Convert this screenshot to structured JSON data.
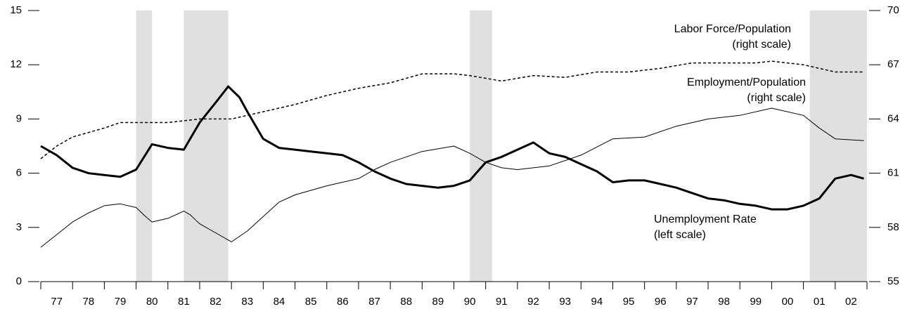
{
  "chart_data": {
    "type": "line",
    "xlim": [
      1977,
      2003
    ],
    "xticks": [
      {
        "value": 1977.5,
        "label": "77"
      },
      {
        "value": 1978.5,
        "label": "78"
      },
      {
        "value": 1979.5,
        "label": "79"
      },
      {
        "value": 1980.5,
        "label": "80"
      },
      {
        "value": 1981.5,
        "label": "81"
      },
      {
        "value": 1982.5,
        "label": "82"
      },
      {
        "value": 1983.5,
        "label": "83"
      },
      {
        "value": 1984.5,
        "label": "84"
      },
      {
        "value": 1985.5,
        "label": "85"
      },
      {
        "value": 1986.5,
        "label": "86"
      },
      {
        "value": 1987.5,
        "label": "87"
      },
      {
        "value": 1988.5,
        "label": "88"
      },
      {
        "value": 1989.5,
        "label": "89"
      },
      {
        "value": 1990.5,
        "label": "90"
      },
      {
        "value": 1991.5,
        "label": "91"
      },
      {
        "value": 1992.5,
        "label": "92"
      },
      {
        "value": 1993.5,
        "label": "93"
      },
      {
        "value": 1994.5,
        "label": "94"
      },
      {
        "value": 1995.5,
        "label": "95"
      },
      {
        "value": 1996.5,
        "label": "96"
      },
      {
        "value": 1997.5,
        "label": "97"
      },
      {
        "value": 1998.5,
        "label": "98"
      },
      {
        "value": 1999.5,
        "label": "99"
      },
      {
        "value": 2000.5,
        "label": "00"
      },
      {
        "value": 2001.5,
        "label": "01"
      },
      {
        "value": 2002.5,
        "label": "02"
      }
    ],
    "ylim": [
      0,
      15
    ],
    "yticks": [
      0,
      3,
      6,
      9,
      12,
      15
    ],
    "y2lim": [
      55,
      70
    ],
    "y2ticks": [
      55,
      58,
      61,
      64,
      67,
      70
    ],
    "recessions": [
      [
        1980.0,
        1980.5
      ],
      [
        1981.5,
        1982.9
      ],
      [
        1990.5,
        1991.2
      ],
      [
        2001.2,
        2003
      ]
    ],
    "recession_color": "#e0e0e0",
    "series": [
      {
        "name": "Labor Force/Population",
        "note": "(right scale)",
        "axis": "y2",
        "color": "#000000",
        "dash": true,
        "width": 1.5,
        "x": [
          1977.0,
          1977.5,
          1978.0,
          1979.0,
          1979.5,
          1980.0,
          1981.0,
          1982.0,
          1983.0,
          1984.0,
          1985.0,
          1986.0,
          1987.0,
          1988.0,
          1989.0,
          1990.0,
          1990.5,
          1991.5,
          1992.5,
          1993.5,
          1994.5,
          1995.5,
          1996.5,
          1997.5,
          1998.5,
          1999.5,
          2000.0,
          2001.0,
          2002.0,
          2002.9
        ],
        "values": [
          61.8,
          62.5,
          63.0,
          63.5,
          63.8,
          63.8,
          63.8,
          64.0,
          64.0,
          64.4,
          64.8,
          65.3,
          65.7,
          66.0,
          66.5,
          66.5,
          66.4,
          66.1,
          66.4,
          66.3,
          66.6,
          66.6,
          66.8,
          67.1,
          67.1,
          67.1,
          67.2,
          67.0,
          66.6,
          66.6
        ]
      },
      {
        "name": "Employment/Population",
        "note": "(right scale)",
        "axis": "y2",
        "color": "#000000",
        "dash": false,
        "width": 1,
        "x": [
          1977.0,
          1977.5,
          1978.0,
          1978.5,
          1979.0,
          1979.5,
          1980.0,
          1980.3,
          1980.5,
          1981.0,
          1981.5,
          1981.7,
          1982.0,
          1982.5,
          1983.0,
          1983.5,
          1984.0,
          1984.5,
          1985.0,
          1986.0,
          1987.0,
          1987.5,
          1988.0,
          1989.0,
          1990.0,
          1990.5,
          1991.0,
          1991.5,
          1992.0,
          1993.0,
          1994.0,
          1995.0,
          1996.0,
          1997.0,
          1998.0,
          1999.0,
          2000.0,
          2001.0,
          2001.5,
          2002.0,
          2002.9
        ],
        "values": [
          56.9,
          57.6,
          58.3,
          58.8,
          59.2,
          59.3,
          59.1,
          58.6,
          58.3,
          58.5,
          58.9,
          58.7,
          58.2,
          57.7,
          57.2,
          57.8,
          58.6,
          59.4,
          59.8,
          60.3,
          60.7,
          61.2,
          61.6,
          62.2,
          62.5,
          62.1,
          61.6,
          61.3,
          61.2,
          61.4,
          62.0,
          62.9,
          63.0,
          63.6,
          64.0,
          64.2,
          64.6,
          64.2,
          63.5,
          62.9,
          62.8
        ]
      },
      {
        "name": "Unemployment Rate",
        "note": "(left scale)",
        "axis": "y",
        "color": "#000000",
        "dash": false,
        "width": 3,
        "x": [
          1977.0,
          1977.5,
          1978.0,
          1978.5,
          1979.0,
          1979.5,
          1980.0,
          1980.5,
          1981.0,
          1981.5,
          1982.0,
          1982.5,
          1982.9,
          1983.25,
          1983.5,
          1984.0,
          1984.5,
          1985.0,
          1985.5,
          1986.0,
          1986.5,
          1987.0,
          1987.5,
          1988.0,
          1988.5,
          1989.0,
          1989.5,
          1990.0,
          1990.5,
          1991.0,
          1991.5,
          1992.0,
          1992.5,
          1993.0,
          1993.5,
          1994.0,
          1994.5,
          1995.0,
          1995.5,
          1996.0,
          1996.5,
          1997.0,
          1997.5,
          1998.0,
          1998.5,
          1999.0,
          1999.5,
          2000.0,
          2000.5,
          2001.0,
          2001.5,
          2002.0,
          2002.5,
          2002.9
        ],
        "values": [
          7.5,
          7.0,
          6.3,
          6.0,
          5.9,
          5.8,
          6.2,
          7.6,
          7.4,
          7.3,
          8.8,
          9.9,
          10.8,
          10.2,
          9.4,
          7.9,
          7.4,
          7.3,
          7.2,
          7.1,
          7.0,
          6.6,
          6.1,
          5.7,
          5.4,
          5.3,
          5.2,
          5.3,
          5.6,
          6.6,
          6.9,
          7.3,
          7.7,
          7.1,
          6.9,
          6.5,
          6.1,
          5.5,
          5.6,
          5.6,
          5.4,
          5.2,
          4.9,
          4.6,
          4.5,
          4.3,
          4.2,
          4.0,
          4.0,
          4.2,
          4.6,
          5.7,
          5.9,
          5.7
        ]
      }
    ]
  }
}
